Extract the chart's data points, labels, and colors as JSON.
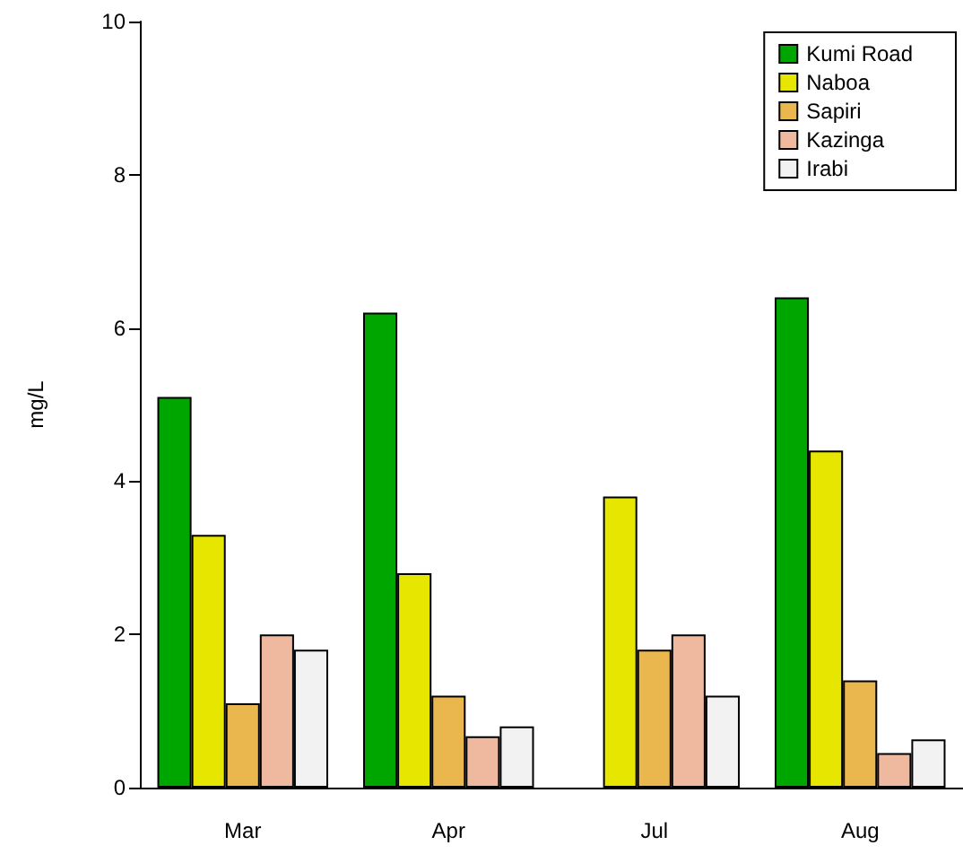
{
  "chart_data": {
    "type": "bar",
    "ylabel": "mg/L",
    "categories": [
      "Mar",
      "Apr",
      "Jul",
      "Aug"
    ],
    "series": [
      {
        "name": "Kumi Road",
        "color": "#00a600",
        "values": [
          5.1,
          6.2,
          null,
          6.4
        ]
      },
      {
        "name": "Naboa",
        "color": "#e6e600",
        "values": [
          3.3,
          2.8,
          3.8,
          4.4
        ]
      },
      {
        "name": "Sapiri",
        "color": "#eab64e",
        "values": [
          1.1,
          1.2,
          1.8,
          1.4
        ]
      },
      {
        "name": "Kazinga",
        "color": "#eeb99f",
        "values": [
          2.0,
          0.67,
          2.0,
          0.45
        ]
      },
      {
        "name": "Irabi",
        "color": "#f2f2f2",
        "values": [
          1.8,
          0.8,
          1.2,
          0.63
        ]
      }
    ],
    "ylim": [
      0,
      10
    ],
    "yticks": [
      0,
      2,
      4,
      6,
      8,
      10
    ],
    "grid": false,
    "legend": "top right"
  }
}
